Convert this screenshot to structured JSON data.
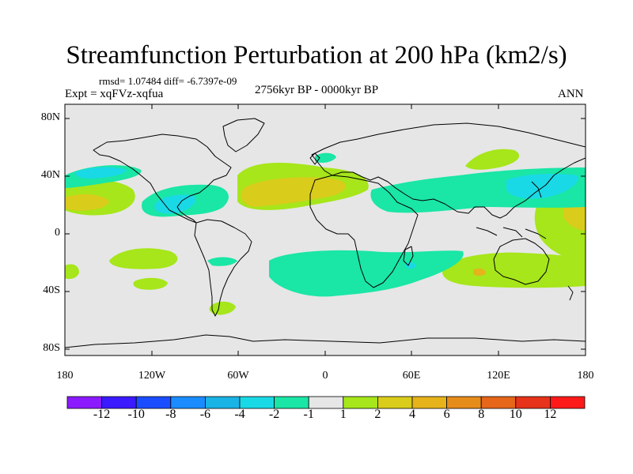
{
  "title": "Streamfunction Perturbation at 200 hPa (km2/s)",
  "stats_text": "rmsd= 1.07484 diff= -6.7397e-09",
  "period_text": "2756kyr BP - 0000kyr BP",
  "experiment_text": "Expt = xqFVz-xqfua",
  "season_text": "ANN",
  "map": {
    "projection": "cylindrical equidistant",
    "lon_range": [
      -180,
      180
    ],
    "lat_range": [
      -90,
      90
    ],
    "lat_ticks": [
      "80N",
      "40N",
      "0",
      "40S",
      "80S"
    ],
    "lon_ticks": [
      "180",
      "120W",
      "60W",
      "0",
      "60E",
      "120E",
      "180"
    ]
  },
  "colorbar": {
    "colors": [
      "#8c1aff",
      "#3b1aff",
      "#1a4dff",
      "#1a8cff",
      "#1ab3e6",
      "#1ad9e6",
      "#1ae6a6",
      "#e6e6e6",
      "#a6e61a",
      "#d9cc1a",
      "#e6b31a",
      "#e68c1a",
      "#e6661a",
      "#e6331a",
      "#ff1a1a"
    ],
    "labels": [
      "-12",
      "-10",
      "-8",
      "-6",
      "-4",
      "-2",
      "-1",
      "1",
      "2",
      "4",
      "6",
      "8",
      "10",
      "12"
    ]
  }
}
